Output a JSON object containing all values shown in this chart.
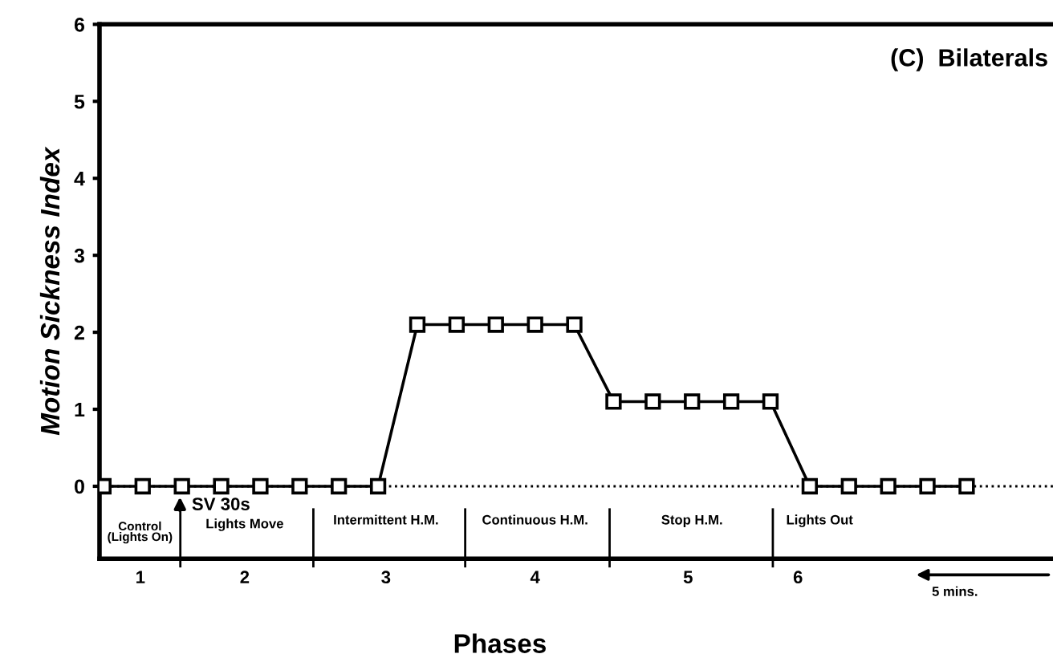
{
  "chart_data": {
    "type": "line",
    "title": "(C)  Bilaterals",
    "xlabel": "Phases",
    "ylabel": "Motion Sickness Index",
    "categories": [
      null,
      null,
      null,
      null,
      null,
      null,
      null,
      null,
      null,
      null,
      null,
      null,
      null,
      null,
      null,
      null,
      null,
      null,
      null,
      null,
      null,
      null,
      null
    ],
    "series": [
      {
        "color": "#000000",
        "values": [
          0,
          0,
          0,
          0,
          0,
          0,
          0,
          0,
          2.1,
          2.1,
          2.1,
          2.1,
          2.1,
          1.1,
          1.1,
          1.1,
          1.1,
          1.1,
          0,
          0,
          0,
          0,
          0
        ]
      }
    ],
    "ylim": [
      -0.94,
      6
    ],
    "yticks": [
      0,
      1,
      2,
      3,
      4,
      5,
      6
    ],
    "marker": "square",
    "line_style": "solid",
    "grid": false,
    "ref_lines": [
      {
        "axis": "y",
        "value": 0,
        "color": "#000000",
        "line_style": "dotted"
      }
    ],
    "annotations": [
      "SV 30s",
      "Control\n(Lights On)",
      "Lights Move",
      "Intermittent H.M.",
      "Continuous H.M.",
      "Stop H.M.",
      "Lights Out",
      "1",
      "2",
      "3",
      "4",
      "5",
      "6",
      "5 mins."
    ]
  }
}
